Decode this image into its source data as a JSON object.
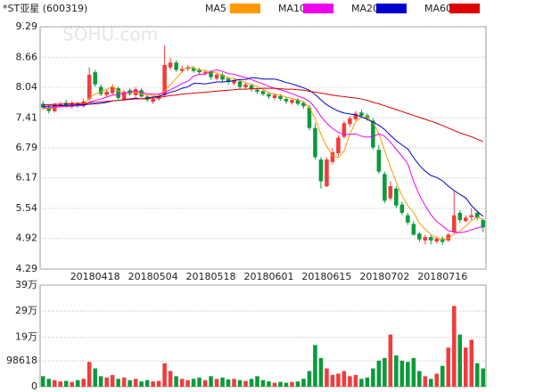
{
  "chart_data": {
    "type": "candlestick",
    "title": "*ST亚星 (600319)",
    "watermark": "SOHU.com",
    "categories": [
      null,
      null,
      null,
      null,
      null,
      null,
      null,
      null,
      null,
      "20180418",
      null,
      null,
      null,
      null,
      null,
      null,
      null,
      null,
      null,
      "20180504",
      null,
      null,
      null,
      null,
      null,
      null,
      null,
      null,
      null,
      "20180518",
      null,
      null,
      null,
      null,
      null,
      null,
      null,
      null,
      null,
      "20180601",
      null,
      null,
      null,
      null,
      null,
      null,
      null,
      null,
      null,
      "20180615",
      null,
      null,
      null,
      null,
      null,
      null,
      null,
      null,
      null,
      "20180702",
      null,
      null,
      null,
      null,
      null,
      null,
      null,
      null,
      null,
      "20180716",
      null,
      null,
      null,
      null,
      null,
      null,
      null
    ],
    "open": [
      7.7,
      7.62,
      7.55,
      7.66,
      7.72,
      7.64,
      7.7,
      7.65,
      7.8,
      8.35,
      8.05,
      7.88,
      7.92,
      8.02,
      7.8,
      7.98,
      7.88,
      7.98,
      7.85,
      7.74,
      7.8,
      7.88,
      8.45,
      8.55,
      8.38,
      8.42,
      8.44,
      8.4,
      8.33,
      8.36,
      8.22,
      8.3,
      8.22,
      8.12,
      8.16,
      8.04,
      8.08,
      7.99,
      7.96,
      7.9,
      7.82,
      7.86,
      7.8,
      7.72,
      7.78,
      7.72,
      7.62,
      7.2,
      6.55,
      6.0,
      6.5,
      6.68,
      7.02,
      7.28,
      7.38,
      7.52,
      7.46,
      7.35,
      6.75,
      6.25,
      5.75,
      5.95,
      5.62,
      5.4,
      5.22,
      5.02,
      4.88,
      4.95,
      4.86,
      4.92,
      4.88,
      5.05,
      5.45,
      5.28,
      5.36,
      5.45,
      5.3
    ],
    "high": [
      7.76,
      7.68,
      7.72,
      7.74,
      7.78,
      7.76,
      7.74,
      7.8,
      8.45,
      8.4,
      8.1,
      8.0,
      8.1,
      8.06,
      7.98,
      8.02,
      8.04,
      8.02,
      7.88,
      7.84,
      7.9,
      8.9,
      8.65,
      8.6,
      8.48,
      8.5,
      8.48,
      8.44,
      8.4,
      8.4,
      8.34,
      8.34,
      8.26,
      8.22,
      8.2,
      8.14,
      8.12,
      8.04,
      8.0,
      7.94,
      7.92,
      7.9,
      7.84,
      7.82,
      7.82,
      7.76,
      7.68,
      7.3,
      6.6,
      6.6,
      6.78,
      7.05,
      7.35,
      7.45,
      7.55,
      7.58,
      7.5,
      7.4,
      6.85,
      6.3,
      6.1,
      6.0,
      5.68,
      5.45,
      5.28,
      5.06,
      5.0,
      5.0,
      4.96,
      4.96,
      5.04,
      5.9,
      5.5,
      5.4,
      5.55,
      5.5,
      5.34
    ],
    "low": [
      7.58,
      7.5,
      7.52,
      7.62,
      7.62,
      7.6,
      7.62,
      7.62,
      7.76,
      8.05,
      7.86,
      7.84,
      7.88,
      7.78,
      7.76,
      7.86,
      7.84,
      7.82,
      7.74,
      7.7,
      7.76,
      7.84,
      8.4,
      8.36,
      8.34,
      8.38,
      8.34,
      8.3,
      8.28,
      8.2,
      8.18,
      8.15,
      8.1,
      8.08,
      8.0,
      8.0,
      7.95,
      7.9,
      7.86,
      7.8,
      7.78,
      7.76,
      7.7,
      7.68,
      7.66,
      7.6,
      7.15,
      6.55,
      5.95,
      5.98,
      6.45,
      6.62,
      6.98,
      7.22,
      7.35,
      7.4,
      7.35,
      6.75,
      6.25,
      5.65,
      5.7,
      5.55,
      5.4,
      5.2,
      4.98,
      4.85,
      4.8,
      4.8,
      4.82,
      4.78,
      4.85,
      5.0,
      5.25,
      5.25,
      5.3,
      5.3,
      5.05
    ],
    "close": [
      7.62,
      7.55,
      7.68,
      7.7,
      7.66,
      7.72,
      7.65,
      7.75,
      8.3,
      8.1,
      7.9,
      7.95,
      8.05,
      7.82,
      7.95,
      7.9,
      8.0,
      7.85,
      7.78,
      7.8,
      7.85,
      8.5,
      8.55,
      8.4,
      8.42,
      8.45,
      8.38,
      8.35,
      8.36,
      8.25,
      8.3,
      8.2,
      8.15,
      8.18,
      8.05,
      8.1,
      8.0,
      7.95,
      7.9,
      7.85,
      7.88,
      7.8,
      7.75,
      7.78,
      7.7,
      7.65,
      7.2,
      6.6,
      6.1,
      6.55,
      6.7,
      7.0,
      7.3,
      7.4,
      7.5,
      7.45,
      7.4,
      6.8,
      6.3,
      5.7,
      6.0,
      5.6,
      5.45,
      5.25,
      5.0,
      4.9,
      4.95,
      4.88,
      4.92,
      4.85,
      5.0,
      5.4,
      5.3,
      5.35,
      5.4,
      5.35,
      5.15
    ],
    "up_color": "#f03c3c",
    "down_color": "#0a9a3c",
    "series": [
      {
        "name": "MA5",
        "color": "#ff9900",
        "values": [
          7.6,
          7.6,
          7.62,
          7.64,
          7.64,
          7.66,
          7.68,
          7.7,
          7.82,
          7.9,
          7.94,
          8.0,
          8.06,
          7.96,
          7.93,
          7.93,
          7.94,
          7.9,
          7.88,
          7.87,
          7.86,
          7.96,
          8.1,
          8.22,
          8.36,
          8.46,
          8.44,
          8.4,
          8.39,
          8.36,
          8.33,
          8.29,
          8.23,
          8.22,
          8.18,
          8.14,
          8.1,
          8.06,
          8.0,
          7.93,
          7.9,
          7.88,
          7.84,
          7.81,
          7.78,
          7.74,
          7.62,
          7.4,
          7.07,
          6.82,
          6.63,
          6.59,
          6.73,
          7.07,
          7.33,
          7.42,
          7.43,
          7.31,
          7.09,
          6.73,
          6.4,
          6.08,
          5.81,
          5.6,
          5.46,
          5.24,
          5.11,
          5.0,
          4.93,
          4.9,
          4.92,
          5.01,
          5.07,
          5.18,
          5.29,
          5.36,
          5.31
        ]
      },
      {
        "name": "MA10",
        "color": "#ee00ee",
        "values": [
          7.62,
          7.62,
          7.63,
          7.64,
          7.65,
          7.65,
          7.66,
          7.67,
          7.73,
          7.77,
          7.8,
          7.84,
          7.88,
          7.89,
          7.92,
          7.94,
          7.97,
          7.93,
          7.91,
          7.9,
          7.9,
          7.93,
          7.99,
          8.05,
          8.12,
          8.16,
          8.27,
          8.31,
          8.31,
          8.36,
          8.4,
          8.37,
          8.32,
          8.31,
          8.27,
          8.24,
          8.2,
          8.15,
          8.11,
          8.06,
          8.02,
          7.99,
          7.95,
          7.91,
          7.86,
          7.82,
          7.75,
          7.62,
          7.44,
          7.3,
          7.19,
          7.11,
          7.07,
          7.07,
          7.08,
          7.03,
          7.01,
          7.02,
          7.08,
          7.03,
          6.91,
          6.76,
          6.62,
          6.46,
          6.1,
          5.82,
          5.6,
          5.41,
          5.27,
          5.18,
          5.08,
          5.06,
          5.04,
          5.06,
          5.1,
          5.14,
          5.16
        ]
      },
      {
        "name": "MA20",
        "color": "#0000cc",
        "values": [
          7.65,
          7.65,
          7.66,
          7.66,
          7.67,
          7.67,
          7.68,
          7.68,
          7.69,
          7.7,
          7.71,
          7.73,
          7.76,
          7.77,
          7.79,
          7.8,
          7.82,
          7.8,
          7.82,
          7.84,
          7.85,
          7.89,
          7.94,
          7.97,
          8.02,
          8.05,
          8.12,
          8.12,
          8.11,
          8.13,
          8.15,
          8.15,
          8.16,
          8.18,
          8.2,
          8.2,
          8.24,
          8.23,
          8.21,
          8.21,
          8.21,
          8.18,
          8.14,
          8.11,
          8.07,
          8.03,
          7.98,
          7.89,
          7.78,
          7.68,
          7.61,
          7.55,
          7.51,
          7.49,
          7.47,
          7.43,
          7.38,
          7.32,
          7.26,
          7.17,
          7.05,
          6.94,
          6.85,
          6.77,
          6.59,
          6.43,
          6.31,
          6.22,
          6.18,
          6.11,
          6.0,
          5.91,
          5.83,
          5.76,
          5.6,
          5.48,
          5.38
        ]
      },
      {
        "name": "MA60",
        "color": "#dd0000",
        "values": [
          7.68,
          7.68,
          7.69,
          7.69,
          7.7,
          7.7,
          7.71,
          7.71,
          7.72,
          7.73,
          7.74,
          7.75,
          7.76,
          7.77,
          7.78,
          7.79,
          7.8,
          7.8,
          7.81,
          7.82,
          7.83,
          7.85,
          7.87,
          7.88,
          7.9,
          7.91,
          7.92,
          7.93,
          7.94,
          7.95,
          7.96,
          7.97,
          7.98,
          7.99,
          8.0,
          8.0,
          8.01,
          8.01,
          8.02,
          8.02,
          8.02,
          8.01,
          8.0,
          8.0,
          7.99,
          7.98,
          7.96,
          7.94,
          7.92,
          7.9,
          7.88,
          7.86,
          7.85,
          7.83,
          7.82,
          7.8,
          7.77,
          7.73,
          7.7,
          7.66,
          7.62,
          7.58,
          7.54,
          7.5,
          7.46,
          7.42,
          7.38,
          7.34,
          7.3,
          7.25,
          7.2,
          7.15,
          7.1,
          7.06,
          7.02,
          6.97,
          6.92
        ]
      }
    ],
    "ylim": [
      4.29,
      9.29
    ],
    "yticks": [
      9.29,
      8.66,
      8.04,
      7.41,
      6.79,
      6.17,
      5.54,
      4.92,
      4.29
    ],
    "grid": true,
    "volume": [
      40000,
      30000,
      25000,
      20000,
      22000,
      18000,
      25000,
      30000,
      95000,
      70000,
      40000,
      35000,
      45000,
      30000,
      35000,
      25000,
      30000,
      20000,
      25000,
      20000,
      22000,
      90000,
      60000,
      40000,
      30000,
      25000,
      30000,
      35000,
      25000,
      40000,
      30000,
      35000,
      28000,
      30000,
      25000,
      22000,
      30000,
      40000,
      25000,
      20000,
      15000,
      18000,
      15000,
      18000,
      20000,
      30000,
      60000,
      160000,
      110000,
      70000,
      45000,
      50000,
      60000,
      40000,
      45000,
      30000,
      35000,
      70000,
      100000,
      110000,
      200000,
      120000,
      100000,
      95000,
      110000,
      60000,
      40000,
      30000,
      50000,
      80000,
      150000,
      310000,
      200000,
      150000,
      180000,
      90000,
      70000
    ],
    "volume_ylim": [
      0,
      390000
    ],
    "volume_yticks": [
      {
        "value": 390000,
        "label": "39万"
      },
      {
        "value": 290000,
        "label": "29万"
      },
      {
        "value": 190000,
        "label": "19万"
      },
      98618,
      0
    ]
  }
}
